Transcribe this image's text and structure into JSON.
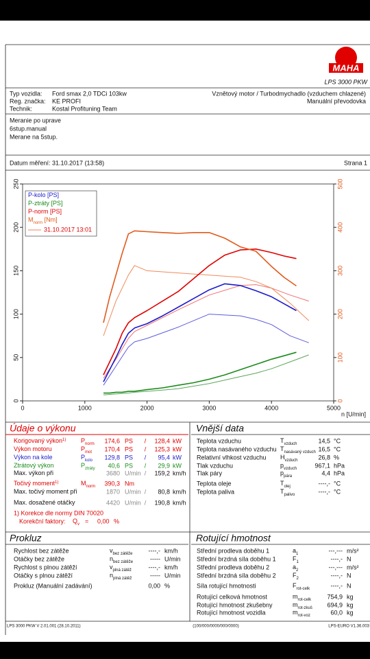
{
  "header": {
    "logo": "MAHA",
    "product": "LPS 3000 PKW"
  },
  "vehicle": {
    "rows": [
      {
        "label": "Typ vozidla:",
        "value": "Ford smax 2,0 TDCi 103kw"
      },
      {
        "label": "Reg. značka:",
        "value": "KE PROFI"
      },
      {
        "label": "Technik:",
        "value": "Kostal Profituning Team"
      }
    ],
    "right": [
      "Vznětový motor / Turbodmychadlo (vzduchem chlazené)",
      "Manuální převodovka"
    ]
  },
  "notes": [
    "Meranie po uprave",
    "6stup.manual",
    "Merane na 5stup."
  ],
  "date": {
    "label": "Datum měření: 31.10.2017 (13:58)",
    "page": "Strana 1"
  },
  "chart_data": {
    "type": "line",
    "x_label": "n [U/min]",
    "xlim": [
      0,
      5000
    ],
    "xticks": [
      0,
      1000,
      2000,
      3000,
      4000,
      5000
    ],
    "ylim": [
      0,
      250
    ],
    "yticks": [
      0,
      50,
      100,
      150,
      200,
      250
    ],
    "y2lim": [
      0,
      500
    ],
    "y2ticks": [
      0,
      100,
      200,
      300,
      400,
      500
    ],
    "y2color": "#e05a1a",
    "grid": false,
    "x": [
      1300,
      1400,
      1500,
      1600,
      1700,
      1800,
      2000,
      2250,
      2500,
      2750,
      3000,
      3250,
      3500,
      3750,
      4000,
      4200,
      4400
    ],
    "series": [
      {
        "name": "P-kolo [PS]",
        "color": "#1a1acc",
        "values": [
          22,
          36,
          50,
          65,
          78,
          84,
          89,
          98,
          108,
          118,
          128,
          135,
          133,
          127,
          120,
          112,
          104
        ]
      },
      {
        "name": "P-ztráty [PS]",
        "color": "#1a8a1a",
        "values": [
          9,
          9,
          10,
          10,
          11,
          11,
          13,
          15,
          18,
          21,
          25,
          30,
          36,
          42,
          48,
          52,
          56
        ]
      },
      {
        "name": "P-norm [PS]",
        "color": "#e00000",
        "values": [
          30,
          45,
          60,
          78,
          90,
          96,
          104,
          115,
          126,
          141,
          156,
          168,
          174,
          175,
          171,
          167,
          164
        ]
      },
      {
        "name": "M",
        "name_sub": "norm",
        "name_unit": " [Nm]",
        "color": "#e05a1a",
        "axis": "y2",
        "values": [
          180,
          240,
          290,
          340,
          385,
          392,
          390,
          388,
          386,
          388,
          388,
          375,
          355,
          345,
          310,
          285,
          265
        ]
      }
    ],
    "comparison": {
      "label": "31.10.2017 13:01",
      "color": "#f08060",
      "label_color": "#e00000",
      "x": [
        1300,
        1500,
        1700,
        1800,
        2000,
        2500,
        3000,
        3500,
        3750,
        4000,
        4300,
        4600
      ],
      "series": [
        {
          "color": "#5c5cdd",
          "values": [
            18,
            40,
            62,
            68,
            72,
            85,
            100,
            98,
            94,
            88,
            75,
            67
          ]
        },
        {
          "color": "#5aa65a",
          "values": [
            7,
            8,
            9,
            10,
            11,
            14,
            20,
            28,
            32,
            37,
            45,
            53
          ]
        },
        {
          "color": "#f07070",
          "values": [
            26,
            48,
            72,
            80,
            87,
            105,
            122,
            133,
            134,
            130,
            122,
            115
          ]
        },
        {
          "color": "#f08a5a",
          "axis": "y2",
          "values": [
            150,
            230,
            290,
            312,
            300,
            295,
            290,
            285,
            275,
            260,
            225,
            185
          ]
        }
      ]
    }
  },
  "performance": {
    "title": "Údaje o výkonu",
    "rows": [
      {
        "label": "Korigovaný výkon",
        "note": "1)",
        "symbol": "P",
        "sub": "norm",
        "values": [
          "174,6",
          "PS",
          "/",
          "128,4",
          "kW"
        ],
        "color": "#e00000"
      },
      {
        "label": "Výkon motoru",
        "symbol": "P",
        "sub": "mot",
        "values": [
          "170,4",
          "PS",
          "/",
          "125,3",
          "kW"
        ],
        "color": "#e00000"
      },
      {
        "label": "Výkon na kole",
        "symbol": "P",
        "sub": "kolo",
        "values": [
          "129,8",
          "PS",
          "/",
          "95,4",
          "kW"
        ],
        "color": "#1a1acc"
      },
      {
        "label": "Ztrátový výkon",
        "symbol": "P",
        "sub": "ztráty",
        "values": [
          "40,6",
          "PS",
          "/",
          "29,9",
          "kW"
        ],
        "color": "#1a8a1a"
      },
      {
        "label": "Max. výkon při",
        "values": [
          "3680",
          "U/min",
          "/",
          "159,2",
          "km/h"
        ],
        "color": "#111111"
      },
      {
        "label": "Točivý moment",
        "note": "1)",
        "symbol": "M",
        "sub": "norm",
        "values": [
          "390,3",
          "Nm"
        ],
        "color": "#e00000"
      },
      {
        "label": "Max. točivý moment při",
        "values": [
          "1870",
          "U/min",
          "/",
          "80,8",
          "km/h"
        ],
        "color": "#111111"
      },
      {
        "label": "Max. dosažené otáčky",
        "values": [
          "4420",
          "U/min",
          "/",
          "190,8",
          "km/h"
        ],
        "color": "#111111"
      }
    ],
    "footnote": "1) Korekce dle normy DIN 70020",
    "factor": {
      "label": "Korekční faktory:",
      "symbol": "Q",
      "sub": "v",
      "eq": "=",
      "value": "0,00",
      "unit": "%"
    }
  },
  "external": {
    "title": "Vnější data",
    "rows": [
      {
        "label": "Teplota vzduchu",
        "symbol": "T",
        "sub": "vzduch",
        "value": "14,5",
        "unit": "°C"
      },
      {
        "label": "Teplota nasávaného vzduchu",
        "symbol": "T",
        "sub": "nasávaný vzduch",
        "value": "16,5",
        "unit": "°C"
      },
      {
        "label": "Relativní vlhkost vzduchu",
        "symbol": "H",
        "sub": "vzduch",
        "value": "26,8",
        "unit": "%"
      },
      {
        "label": "Tlak vzduchu",
        "symbol": "p",
        "sub": "vzduch",
        "value": "967,1",
        "unit": "hPa"
      },
      {
        "label": "Tlak páry",
        "symbol": "p",
        "sub": "pára",
        "value": "4,4",
        "unit": "hPa"
      },
      {
        "label": "Teplota oleje",
        "symbol": "T",
        "sub": "olej",
        "value": "----,-",
        "unit": "°C"
      },
      {
        "label": "Teplota paliva",
        "symbol": "T",
        "sub": "palivo",
        "value": "----,-",
        "unit": "°C"
      }
    ]
  },
  "slip": {
    "title": "Prokluz",
    "rows": [
      {
        "label": "Rychlost bez zátěže",
        "symbol": "v",
        "sub": "bez zátěže",
        "value": "----,-",
        "unit": "km/h"
      },
      {
        "label": "Otáčky bez zátěže",
        "symbol": "n",
        "sub": "bez zátěže",
        "value": "-----",
        "unit": "U/min"
      },
      {
        "label": "Rychlost s plnou zátěží",
        "symbol": "v",
        "sub": "plná zátěž",
        "value": "----,-",
        "unit": "km/h"
      },
      {
        "label": "Otáčky s plnou zátěží",
        "symbol": "n",
        "sub": "plná zátěž",
        "value": "-----",
        "unit": "U/min"
      },
      {
        "label": "Prokluz (Manuální zadávání)",
        "value": "0,00",
        "unit": "%"
      }
    ]
  },
  "rotating": {
    "title": "Rotující hmotnost",
    "rows": [
      {
        "label": "Střední prodleva doběhu 1",
        "symbol": "a",
        "sub": "1",
        "value": "---,---",
        "unit": "m/s²"
      },
      {
        "label": "Střední brzdná síla doběhu 1",
        "symbol": "F",
        "sub": "1",
        "value": "----,-",
        "unit": "N"
      },
      {
        "label": "Střední prodleva doběhu 2",
        "symbol": "a",
        "sub": "2",
        "value": "---,---",
        "unit": "m/s²"
      },
      {
        "label": "Střední brzdná síla doběhu 2",
        "symbol": "F",
        "sub": "2",
        "value": "----,-",
        "unit": "N"
      },
      {
        "label": "Síla rotující hmotnosti",
        "symbol": "F",
        "sub": "rot-celk",
        "value": "----,-",
        "unit": "N"
      },
      {
        "label": "Rotující celková hmotnost",
        "symbol": "m",
        "sub": "rot-celk",
        "value": "754,9",
        "unit": "kg"
      },
      {
        "label": "Rotující hmotnost zkušebny",
        "symbol": "m",
        "sub": "rot-zkuš",
        "value": "694,9",
        "unit": "kg"
      },
      {
        "label": "Rotující hmotnost vozidla",
        "symbol": "m",
        "sub": "rot-voz",
        "value": "60,0",
        "unit": "kg"
      }
    ]
  },
  "footer": [
    "LPS 3000 PKW V 2.01.001 (28.10.2011)",
    "(100/000/0000/000/0000)",
    "LPS-EURO V1.36.003"
  ]
}
